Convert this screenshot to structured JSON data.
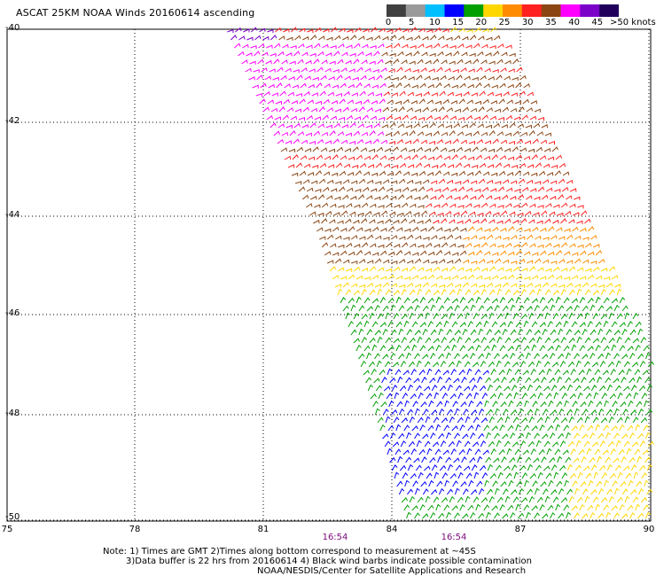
{
  "title": "ASCAT 25KM NOAA Winds 20160614 ascending",
  "colorbar": {
    "labels": [
      "0",
      "5",
      "10",
      "15",
      "20",
      "25",
      "30",
      "35",
      "40",
      "45"
    ],
    "last_label": ">50 knots",
    "colors": [
      "#404040",
      "#9a9a9a",
      "#00bfff",
      "#0000ff",
      "#00a000",
      "#ffd700",
      "#ff8c00",
      "#ff2020",
      "#8b4513",
      "#ff00ff",
      "#7b00c8",
      "#20005a"
    ]
  },
  "axes": {
    "y_labels": [
      "-40",
      "-42",
      "-44",
      "-46",
      "-48",
      "-50"
    ],
    "x_labels": [
      "75",
      "78",
      "81",
      "84",
      "87",
      "90"
    ]
  },
  "times": [
    "16:54",
    "16:54"
  ],
  "notes": {
    "line1": "Note: 1) Times are GMT 2)Times along bottom correspond to measurement at ~45S",
    "line2": "3)Data buffer is 22 hrs from 20160614 4) Black wind barbs indicate possible contamination",
    "line3": "NOAA/NESDIS/Center for Satellite Applications and Research"
  }
}
